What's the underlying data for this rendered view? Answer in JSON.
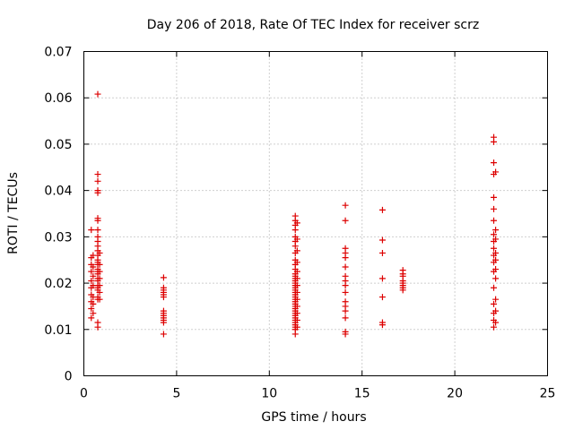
{
  "chart_data": {
    "type": "scatter",
    "title": "Day 206 of 2018, Rate Of TEC Index for receiver scrz",
    "xlabel": "GPS time / hours",
    "ylabel": "ROTI / TECUs",
    "xlim": [
      0,
      25
    ],
    "ylim": [
      0,
      0.07
    ],
    "xticks": [
      0,
      5,
      10,
      15,
      20,
      25
    ],
    "xtick_labels": [
      "0",
      "5",
      "10",
      "15",
      "20",
      "25"
    ],
    "yticks": [
      0,
      0.01,
      0.02,
      0.03,
      0.04,
      0.05,
      0.06,
      0.07
    ],
    "ytick_labels": [
      "0",
      "0.01",
      "0.02",
      "0.03",
      "0.04",
      "0.05",
      "0.06",
      "0.07"
    ],
    "grid": true,
    "marker": "+",
    "color": "#dd0000",
    "series": [
      {
        "name": "ROTI",
        "points": [
          [
            0.4,
            0.0125
          ],
          [
            0.4,
            0.0145
          ],
          [
            0.4,
            0.016
          ],
          [
            0.4,
            0.0175
          ],
          [
            0.4,
            0.019
          ],
          [
            0.4,
            0.0205
          ],
          [
            0.4,
            0.0225
          ],
          [
            0.4,
            0.024
          ],
          [
            0.4,
            0.0255
          ],
          [
            0.4,
            0.0315
          ],
          [
            0.5,
            0.0135
          ],
          [
            0.5,
            0.0155
          ],
          [
            0.5,
            0.017
          ],
          [
            0.5,
            0.0195
          ],
          [
            0.5,
            0.0215
          ],
          [
            0.5,
            0.0235
          ],
          [
            0.5,
            0.026
          ],
          [
            0.75,
            0.0105
          ],
          [
            0.75,
            0.0115
          ],
          [
            0.75,
            0.0165
          ],
          [
            0.75,
            0.017
          ],
          [
            0.75,
            0.0185
          ],
          [
            0.75,
            0.019
          ],
          [
            0.75,
            0.0195
          ],
          [
            0.75,
            0.0205
          ],
          [
            0.75,
            0.021
          ],
          [
            0.75,
            0.022
          ],
          [
            0.75,
            0.0225
          ],
          [
            0.75,
            0.023
          ],
          [
            0.75,
            0.024
          ],
          [
            0.75,
            0.0245
          ],
          [
            0.75,
            0.025
          ],
          [
            0.75,
            0.026
          ],
          [
            0.75,
            0.027
          ],
          [
            0.75,
            0.028
          ],
          [
            0.75,
            0.029
          ],
          [
            0.75,
            0.03
          ],
          [
            0.75,
            0.0315
          ],
          [
            0.75,
            0.0335
          ],
          [
            0.75,
            0.034
          ],
          [
            0.75,
            0.0395
          ],
          [
            0.75,
            0.04
          ],
          [
            0.75,
            0.042
          ],
          [
            0.75,
            0.0435
          ],
          [
            0.75,
            0.0608
          ],
          [
            0.85,
            0.0165
          ],
          [
            0.85,
            0.018
          ],
          [
            0.85,
            0.0195
          ],
          [
            0.85,
            0.021
          ],
          [
            0.85,
            0.0225
          ],
          [
            0.85,
            0.024
          ],
          [
            0.85,
            0.0265
          ],
          [
            4.3,
            0.009
          ],
          [
            4.3,
            0.0115
          ],
          [
            4.3,
            0.012
          ],
          [
            4.3,
            0.0125
          ],
          [
            4.3,
            0.013
          ],
          [
            4.3,
            0.0135
          ],
          [
            4.3,
            0.014
          ],
          [
            4.3,
            0.017
          ],
          [
            4.3,
            0.0175
          ],
          [
            4.3,
            0.018
          ],
          [
            4.3,
            0.0185
          ],
          [
            4.3,
            0.019
          ],
          [
            4.3,
            0.0212
          ],
          [
            11.4,
            0.009
          ],
          [
            11.4,
            0.01
          ],
          [
            11.4,
            0.0105
          ],
          [
            11.4,
            0.011
          ],
          [
            11.4,
            0.0115
          ],
          [
            11.4,
            0.012
          ],
          [
            11.4,
            0.0125
          ],
          [
            11.4,
            0.013
          ],
          [
            11.4,
            0.0135
          ],
          [
            11.4,
            0.014
          ],
          [
            11.4,
            0.0145
          ],
          [
            11.4,
            0.015
          ],
          [
            11.4,
            0.0155
          ],
          [
            11.4,
            0.016
          ],
          [
            11.4,
            0.0165
          ],
          [
            11.4,
            0.017
          ],
          [
            11.4,
            0.0175
          ],
          [
            11.4,
            0.018
          ],
          [
            11.4,
            0.0185
          ],
          [
            11.4,
            0.019
          ],
          [
            11.4,
            0.0195
          ],
          [
            11.4,
            0.02
          ],
          [
            11.4,
            0.0205
          ],
          [
            11.4,
            0.021
          ],
          [
            11.4,
            0.0215
          ],
          [
            11.4,
            0.022
          ],
          [
            11.4,
            0.023
          ],
          [
            11.4,
            0.024
          ],
          [
            11.4,
            0.025
          ],
          [
            11.4,
            0.0265
          ],
          [
            11.4,
            0.028
          ],
          [
            11.4,
            0.029
          ],
          [
            11.4,
            0.03
          ],
          [
            11.4,
            0.0315
          ],
          [
            11.4,
            0.0325
          ],
          [
            11.4,
            0.0335
          ],
          [
            11.4,
            0.0345
          ],
          [
            11.5,
            0.0105
          ],
          [
            11.5,
            0.012
          ],
          [
            11.5,
            0.0135
          ],
          [
            11.5,
            0.015
          ],
          [
            11.5,
            0.0165
          ],
          [
            11.5,
            0.018
          ],
          [
            11.5,
            0.0195
          ],
          [
            11.5,
            0.021
          ],
          [
            11.5,
            0.0225
          ],
          [
            11.5,
            0.0245
          ],
          [
            11.5,
            0.027
          ],
          [
            11.5,
            0.0295
          ],
          [
            11.5,
            0.033
          ],
          [
            14.1,
            0.009
          ],
          [
            14.1,
            0.0095
          ],
          [
            14.1,
            0.0125
          ],
          [
            14.1,
            0.014
          ],
          [
            14.1,
            0.015
          ],
          [
            14.1,
            0.016
          ],
          [
            14.1,
            0.018
          ],
          [
            14.1,
            0.0195
          ],
          [
            14.1,
            0.0205
          ],
          [
            14.1,
            0.0215
          ],
          [
            14.1,
            0.0235
          ],
          [
            14.1,
            0.0255
          ],
          [
            14.1,
            0.0265
          ],
          [
            14.1,
            0.0275
          ],
          [
            14.1,
            0.0335
          ],
          [
            14.1,
            0.0368
          ],
          [
            16.1,
            0.011
          ],
          [
            16.1,
            0.0115
          ],
          [
            16.1,
            0.017
          ],
          [
            16.1,
            0.021
          ],
          [
            16.1,
            0.0265
          ],
          [
            16.1,
            0.0293
          ],
          [
            16.1,
            0.0358
          ],
          [
            17.2,
            0.0185
          ],
          [
            17.2,
            0.019
          ],
          [
            17.2,
            0.0195
          ],
          [
            17.2,
            0.02
          ],
          [
            17.2,
            0.0205
          ],
          [
            17.2,
            0.0215
          ],
          [
            17.2,
            0.022
          ],
          [
            17.2,
            0.0228
          ],
          [
            22.1,
            0.0105
          ],
          [
            22.1,
            0.012
          ],
          [
            22.1,
            0.0135
          ],
          [
            22.1,
            0.0155
          ],
          [
            22.1,
            0.019
          ],
          [
            22.1,
            0.0225
          ],
          [
            22.1,
            0.0245
          ],
          [
            22.1,
            0.026
          ],
          [
            22.1,
            0.0275
          ],
          [
            22.1,
            0.029
          ],
          [
            22.1,
            0.0305
          ],
          [
            22.1,
            0.0335
          ],
          [
            22.1,
            0.036
          ],
          [
            22.1,
            0.0385
          ],
          [
            22.1,
            0.0435
          ],
          [
            22.1,
            0.046
          ],
          [
            22.1,
            0.0505
          ],
          [
            22.1,
            0.0515
          ],
          [
            22.2,
            0.0115
          ],
          [
            22.2,
            0.014
          ],
          [
            22.2,
            0.0165
          ],
          [
            22.2,
            0.021
          ],
          [
            22.2,
            0.023
          ],
          [
            22.2,
            0.025
          ],
          [
            22.2,
            0.0265
          ],
          [
            22.2,
            0.0295
          ],
          [
            22.2,
            0.0315
          ],
          [
            22.2,
            0.044
          ]
        ]
      }
    ]
  }
}
